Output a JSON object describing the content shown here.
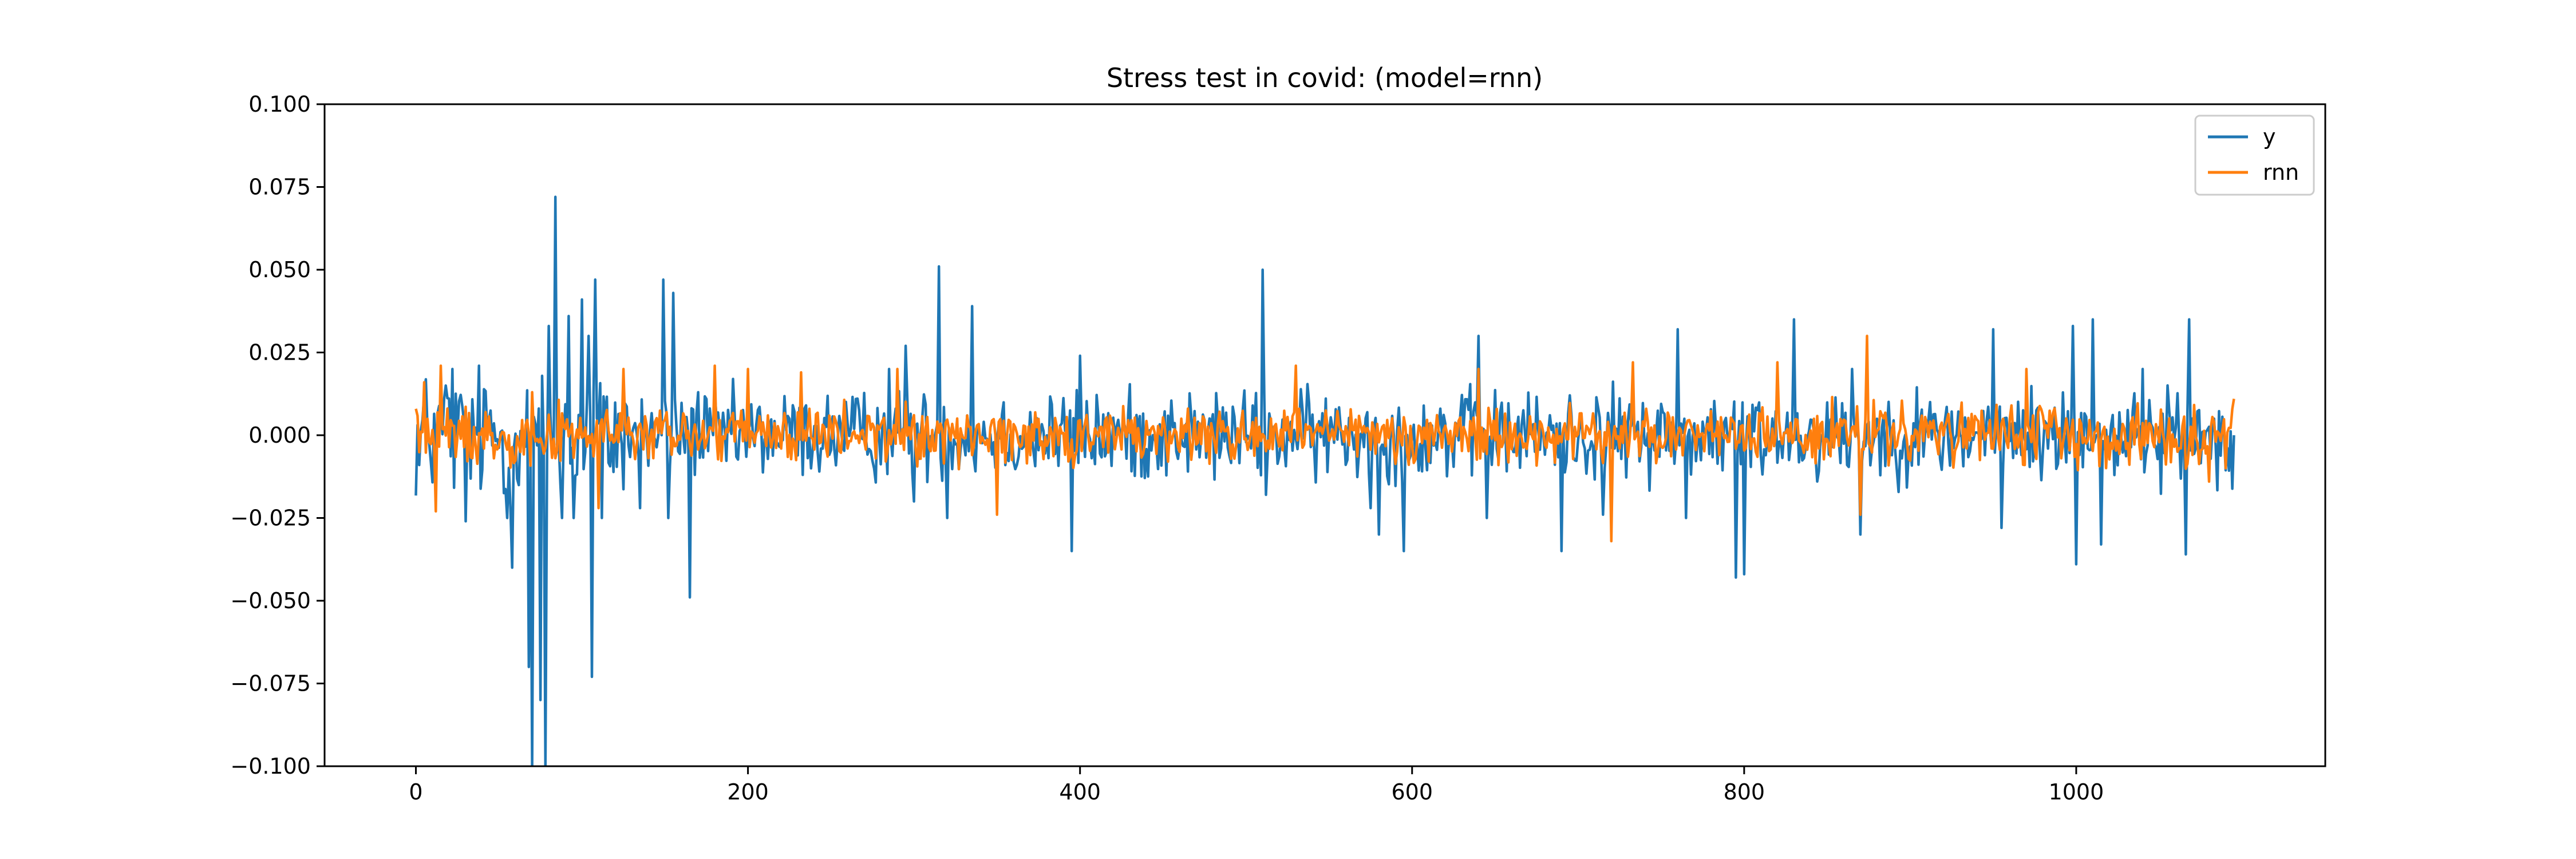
{
  "chart_data": {
    "type": "line",
    "title": "Stress test in covid: (model=rnn)",
    "xlabel": "",
    "ylabel": "",
    "xlim": [
      -55,
      1150
    ],
    "ylim": [
      -0.1,
      0.1
    ],
    "x_ticks": [
      0,
      200,
      400,
      600,
      800,
      1000
    ],
    "x_tick_labels": [
      "0",
      "200",
      "400",
      "600",
      "800",
      "1000"
    ],
    "y_ticks": [
      -0.1,
      -0.075,
      -0.05,
      -0.025,
      0.0,
      0.025,
      0.05,
      0.075,
      0.1
    ],
    "y_tick_labels": [
      "−0.100",
      "−0.075",
      "−0.050",
      "−0.025",
      "0.000",
      "0.025",
      "0.050",
      "0.075",
      "0.100"
    ],
    "grid": false,
    "legend_position": "top-right",
    "x_range": [
      0,
      1095
    ],
    "series": [
      {
        "name": "y",
        "color": "#1f77b4",
        "amplitude": 0.011,
        "notable_points": [
          [
            2,
            -0.009
          ],
          [
            5,
            0.012
          ],
          [
            18,
            0.015
          ],
          [
            22,
            0.02
          ],
          [
            30,
            -0.026
          ],
          [
            38,
            0.021
          ],
          [
            55,
            -0.025
          ],
          [
            58,
            -0.04
          ],
          [
            68,
            -0.07
          ],
          [
            70,
            -0.1
          ],
          [
            75,
            -0.08
          ],
          [
            78,
            -0.1
          ],
          [
            80,
            0.033
          ],
          [
            84,
            0.072
          ],
          [
            88,
            -0.025
          ],
          [
            92,
            0.036
          ],
          [
            95,
            -0.025
          ],
          [
            100,
            0.041
          ],
          [
            104,
            0.03
          ],
          [
            106,
            -0.073
          ],
          [
            108,
            0.047
          ],
          [
            112,
            -0.025
          ],
          [
            135,
            -0.022
          ],
          [
            149,
            0.047
          ],
          [
            152,
            -0.025
          ],
          [
            155,
            0.043
          ],
          [
            165,
            -0.049
          ],
          [
            170,
            0.013
          ],
          [
            285,
            0.02
          ],
          [
            295,
            0.027
          ],
          [
            300,
            -0.02
          ],
          [
            315,
            0.051
          ],
          [
            320,
            -0.025
          ],
          [
            335,
            0.039
          ],
          [
            395,
            -0.035
          ],
          [
            400,
            0.024
          ],
          [
            510,
            0.05
          ],
          [
            512,
            -0.018
          ],
          [
            575,
            -0.022
          ],
          [
            580,
            -0.03
          ],
          [
            595,
            -0.035
          ],
          [
            640,
            0.03
          ],
          [
            645,
            -0.025
          ],
          [
            690,
            -0.035
          ],
          [
            715,
            -0.024
          ],
          [
            760,
            0.032
          ],
          [
            765,
            -0.025
          ],
          [
            795,
            -0.043
          ],
          [
            800,
            -0.042
          ],
          [
            830,
            0.035
          ],
          [
            865,
            0.02
          ],
          [
            870,
            -0.03
          ],
          [
            950,
            0.032
          ],
          [
            955,
            -0.028
          ],
          [
            998,
            0.033
          ],
          [
            1000,
            -0.039
          ],
          [
            1010,
            0.035
          ],
          [
            1015,
            -0.033
          ],
          [
            1040,
            0.02
          ],
          [
            1066,
            -0.036
          ],
          [
            1068,
            0.035
          ],
          [
            1095,
            0.0
          ]
        ]
      },
      {
        "name": "rnn",
        "color": "#ff7f0e",
        "amplitude": 0.007,
        "notable_points": [
          [
            0,
            0.008
          ],
          [
            5,
            0.016
          ],
          [
            12,
            -0.023
          ],
          [
            15,
            0.021
          ],
          [
            70,
            0.013
          ],
          [
            110,
            -0.022
          ],
          [
            125,
            0.02
          ],
          [
            180,
            0.021
          ],
          [
            200,
            0.02
          ],
          [
            232,
            0.019
          ],
          [
            290,
            0.02
          ],
          [
            350,
            -0.024
          ],
          [
            530,
            0.021
          ],
          [
            640,
            0.02
          ],
          [
            720,
            -0.032
          ],
          [
            733,
            0.022
          ],
          [
            820,
            0.022
          ],
          [
            870,
            -0.024
          ],
          [
            874,
            0.03
          ],
          [
            970,
            0.02
          ],
          [
            1080,
            -0.014
          ],
          [
            1095,
            0.011
          ]
        ]
      }
    ]
  }
}
